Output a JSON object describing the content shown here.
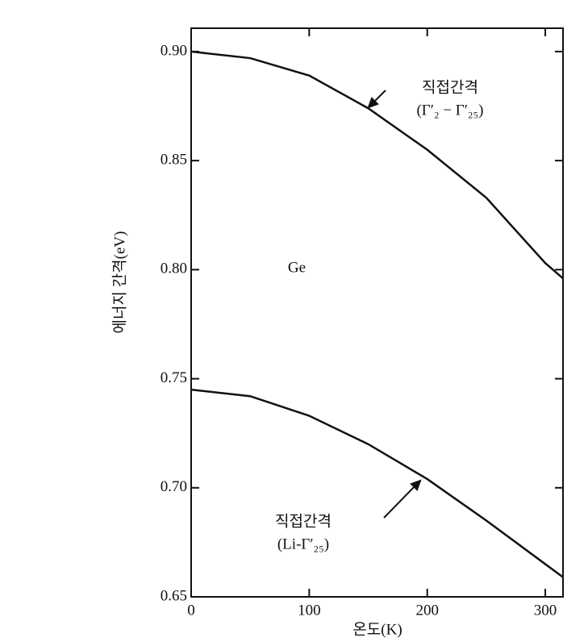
{
  "chart_data": {
    "type": "line",
    "x": [
      0,
      50,
      100,
      150,
      200,
      250,
      300,
      315
    ],
    "series": [
      {
        "color": "#111111",
        "values": [
          0.9,
          0.897,
          0.889,
          0.874,
          0.855,
          0.833,
          0.803,
          0.796
        ]
      },
      {
        "color": "#111111",
        "values": [
          0.745,
          0.742,
          0.733,
          0.72,
          0.704,
          0.685,
          0.665,
          0.659
        ]
      }
    ],
    "xlim": [
      0,
      315
    ],
    "ylim": [
      0.65,
      0.9107
    ],
    "xticks": [
      0,
      100,
      200,
      300
    ],
    "yticks": [
      {
        "value": 0.65,
        "label": "0.65"
      },
      {
        "value": 0.7,
        "label": "0.70"
      },
      {
        "value": 0.75,
        "label": "0.75"
      },
      {
        "value": 0.8,
        "label": "0.80"
      },
      {
        "value": 0.85,
        "label": "0.85"
      },
      {
        "value": 0.9,
        "label": "0.90"
      }
    ],
    "xlabel": "온도(K)",
    "ylabel": "에너지 간격(eV)",
    "annotations": [
      {
        "text": "직접간격"
      },
      {
        "text": "(Γ′₂ − Γ′₂₅)"
      },
      {
        "text": "Ge"
      },
      {
        "text": "직접간격"
      },
      {
        "text": "(Li-Γ′₂₅)"
      }
    ],
    "grid": false
  }
}
